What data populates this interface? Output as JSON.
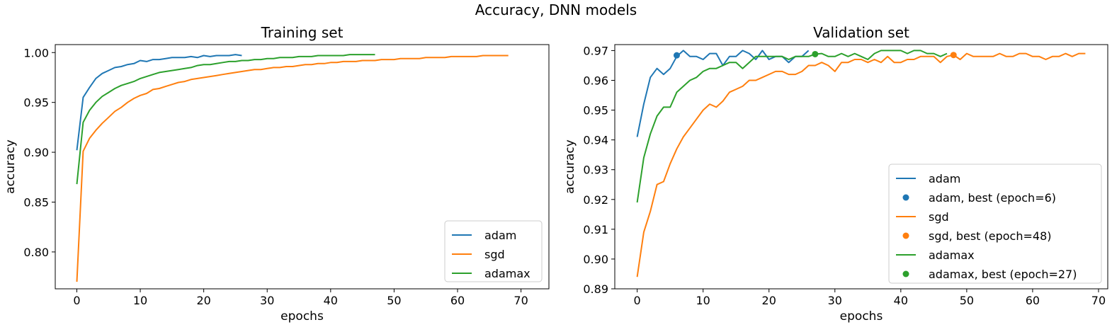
{
  "figure": {
    "suptitle": "Accuracy, DNN models"
  },
  "chart_data": [
    {
      "type": "line",
      "title": "Training set",
      "xlabel": "epochs",
      "ylabel": "accuracy",
      "xlim": [
        -3.4,
        74.4
      ],
      "ylim": [
        0.763,
        1.008
      ],
      "xticks": [
        0,
        10,
        20,
        30,
        40,
        50,
        60,
        70
      ],
      "yticks": [
        0.8,
        0.85,
        0.9,
        0.95,
        1.0
      ],
      "grid": false,
      "legend": "lower right",
      "series": [
        {
          "name": "adam",
          "color": "#1f77b4",
          "values": [
            0.902,
            0.955,
            0.965,
            0.974,
            0.979,
            0.982,
            0.985,
            0.986,
            0.988,
            0.989,
            0.992,
            0.991,
            0.993,
            0.993,
            0.994,
            0.995,
            0.995,
            0.995,
            0.996,
            0.995,
            0.997,
            0.996,
            0.997,
            0.997,
            0.997,
            0.998,
            0.997
          ]
        },
        {
          "name": "sgd",
          "color": "#ff7f0e",
          "values": [
            0.77,
            0.901,
            0.914,
            0.922,
            0.929,
            0.935,
            0.941,
            0.945,
            0.95,
            0.954,
            0.957,
            0.959,
            0.963,
            0.964,
            0.966,
            0.968,
            0.97,
            0.971,
            0.973,
            0.974,
            0.975,
            0.976,
            0.977,
            0.978,
            0.979,
            0.98,
            0.981,
            0.982,
            0.983,
            0.983,
            0.984,
            0.985,
            0.985,
            0.986,
            0.986,
            0.987,
            0.988,
            0.988,
            0.989,
            0.989,
            0.99,
            0.99,
            0.991,
            0.991,
            0.991,
            0.992,
            0.992,
            0.992,
            0.993,
            0.993,
            0.993,
            0.994,
            0.994,
            0.994,
            0.994,
            0.995,
            0.995,
            0.995,
            0.995,
            0.996,
            0.996,
            0.996,
            0.996,
            0.996,
            0.997,
            0.997,
            0.997,
            0.997,
            0.997
          ]
        },
        {
          "name": "adamax",
          "color": "#2ca02c",
          "values": [
            0.868,
            0.93,
            0.942,
            0.95,
            0.956,
            0.96,
            0.964,
            0.967,
            0.969,
            0.971,
            0.974,
            0.976,
            0.978,
            0.98,
            0.981,
            0.982,
            0.983,
            0.984,
            0.985,
            0.987,
            0.988,
            0.988,
            0.989,
            0.99,
            0.991,
            0.991,
            0.992,
            0.992,
            0.993,
            0.993,
            0.994,
            0.994,
            0.995,
            0.995,
            0.995,
            0.996,
            0.996,
            0.996,
            0.997,
            0.997,
            0.997,
            0.997,
            0.997,
            0.998,
            0.998,
            0.998,
            0.998,
            0.998
          ]
        }
      ]
    },
    {
      "type": "line",
      "title": "Validation set",
      "xlabel": "epochs",
      "ylabel": "accuracy",
      "xlim": [
        -3.4,
        71.4
      ],
      "ylim": [
        0.89,
        0.972
      ],
      "xticks": [
        0,
        10,
        20,
        30,
        40,
        50,
        60,
        70
      ],
      "yticks": [
        0.89,
        0.9,
        0.91,
        0.92,
        0.93,
        0.94,
        0.95,
        0.96,
        0.97
      ],
      "grid": false,
      "legend": "lower right",
      "series": [
        {
          "name": "adam",
          "color": "#1f77b4",
          "values": [
            0.941,
            0.952,
            0.961,
            0.964,
            0.962,
            0.964,
            0.968,
            0.97,
            0.968,
            0.968,
            0.967,
            0.969,
            0.969,
            0.965,
            0.968,
            0.968,
            0.97,
            0.969,
            0.967,
            0.97,
            0.967,
            0.968,
            0.968,
            0.966,
            0.968,
            0.968,
            0.97
          ]
        },
        {
          "name": "sgd",
          "color": "#ff7f0e",
          "values": [
            0.894,
            0.909,
            0.916,
            0.925,
            0.926,
            0.932,
            0.937,
            0.941,
            0.944,
            0.947,
            0.95,
            0.952,
            0.951,
            0.953,
            0.956,
            0.957,
            0.958,
            0.96,
            0.96,
            0.961,
            0.962,
            0.963,
            0.963,
            0.962,
            0.962,
            0.963,
            0.965,
            0.965,
            0.966,
            0.965,
            0.963,
            0.966,
            0.966,
            0.967,
            0.967,
            0.966,
            0.967,
            0.966,
            0.968,
            0.966,
            0.966,
            0.967,
            0.967,
            0.968,
            0.968,
            0.968,
            0.966,
            0.968,
            0.9685,
            0.967,
            0.969,
            0.968,
            0.968,
            0.968,
            0.968,
            0.969,
            0.968,
            0.968,
            0.969,
            0.969,
            0.968,
            0.968,
            0.967,
            0.968,
            0.968,
            0.969,
            0.968,
            0.969,
            0.969
          ]
        },
        {
          "name": "adamax",
          "color": "#2ca02c",
          "values": [
            0.919,
            0.934,
            0.942,
            0.948,
            0.951,
            0.951,
            0.956,
            0.958,
            0.96,
            0.961,
            0.963,
            0.964,
            0.964,
            0.965,
            0.966,
            0.966,
            0.964,
            0.966,
            0.968,
            0.968,
            0.968,
            0.968,
            0.968,
            0.967,
            0.968,
            0.968,
            0.968,
            0.9688,
            0.969,
            0.968,
            0.968,
            0.969,
            0.968,
            0.969,
            0.968,
            0.967,
            0.969,
            0.97,
            0.97,
            0.97,
            0.97,
            0.969,
            0.97,
            0.97,
            0.969,
            0.969,
            0.968,
            0.969
          ]
        }
      ],
      "best_points": [
        {
          "name": "adam, best (epoch=6)",
          "color": "#1f77b4",
          "x": 6,
          "y": 0.9684
        },
        {
          "name": "sgd, best (epoch=48)",
          "color": "#ff7f0e",
          "x": 48,
          "y": 0.9685
        },
        {
          "name": "adamax, best (epoch=27)",
          "color": "#2ca02c",
          "x": 27,
          "y": 0.9688
        }
      ]
    }
  ]
}
